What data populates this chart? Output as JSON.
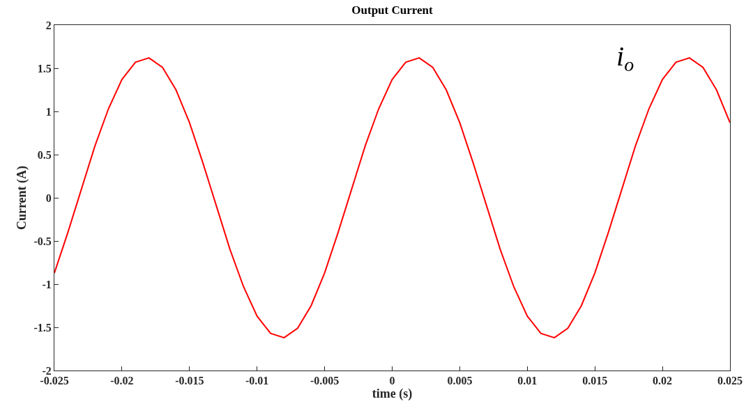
{
  "chart_data": {
    "type": "line",
    "title": "Output Current",
    "xlabel": "time (s)",
    "ylabel": "Current (A)",
    "annotations": [
      "i$_{o}$"
    ],
    "x": [
      -0.025,
      -0.024,
      -0.023,
      -0.022,
      -0.021,
      -0.02,
      -0.019,
      -0.018,
      -0.017,
      -0.016,
      -0.015,
      -0.014,
      -0.013,
      -0.012,
      -0.011,
      -0.01,
      -0.009,
      -0.008,
      -0.007,
      -0.006,
      -0.005,
      -0.004,
      -0.003,
      -0.002,
      -0.001,
      0,
      0.001,
      0.002,
      0.003,
      0.004,
      0.005,
      0.006,
      0.007,
      0.008,
      0.009,
      0.01,
      0.011,
      0.012,
      0.013,
      0.014,
      0.015,
      0.016,
      0.017,
      0.018,
      0.019,
      0.02,
      0.021,
      0.022,
      0.023,
      0.024,
      0.025
    ],
    "series": [
      {
        "color": "#ff0000",
        "values": [
          -0.87,
          -0.4,
          0.1,
          0.6,
          1.03,
          1.37,
          1.57,
          1.62,
          1.51,
          1.25,
          0.87,
          0.4,
          -0.1,
          -0.6,
          -1.03,
          -1.37,
          -1.57,
          -1.62,
          -1.51,
          -1.25,
          -0.87,
          -0.4,
          0.1,
          0.6,
          1.03,
          1.37,
          1.57,
          1.62,
          1.51,
          1.25,
          0.87,
          0.4,
          -0.1,
          -0.6,
          -1.03,
          -1.37,
          -1.57,
          -1.62,
          -1.51,
          -1.25,
          -0.87,
          -0.4,
          0.1,
          0.6,
          1.03,
          1.37,
          1.57,
          1.62,
          1.51,
          1.25,
          0.87
        ]
      }
    ],
    "xlim": [
      -0.025,
      0.025
    ],
    "xticks": [
      -0.025,
      -0.02,
      -0.015,
      -0.01,
      -0.005,
      0,
      0.005,
      0.01,
      0.015,
      0.02,
      0.025
    ],
    "ylim": [
      -2,
      2
    ],
    "yticks": [
      -2,
      -1.5,
      -1,
      -0.5,
      0,
      0.5,
      1,
      1.5,
      2
    ],
    "marker": "none",
    "line_style": "solid"
  }
}
